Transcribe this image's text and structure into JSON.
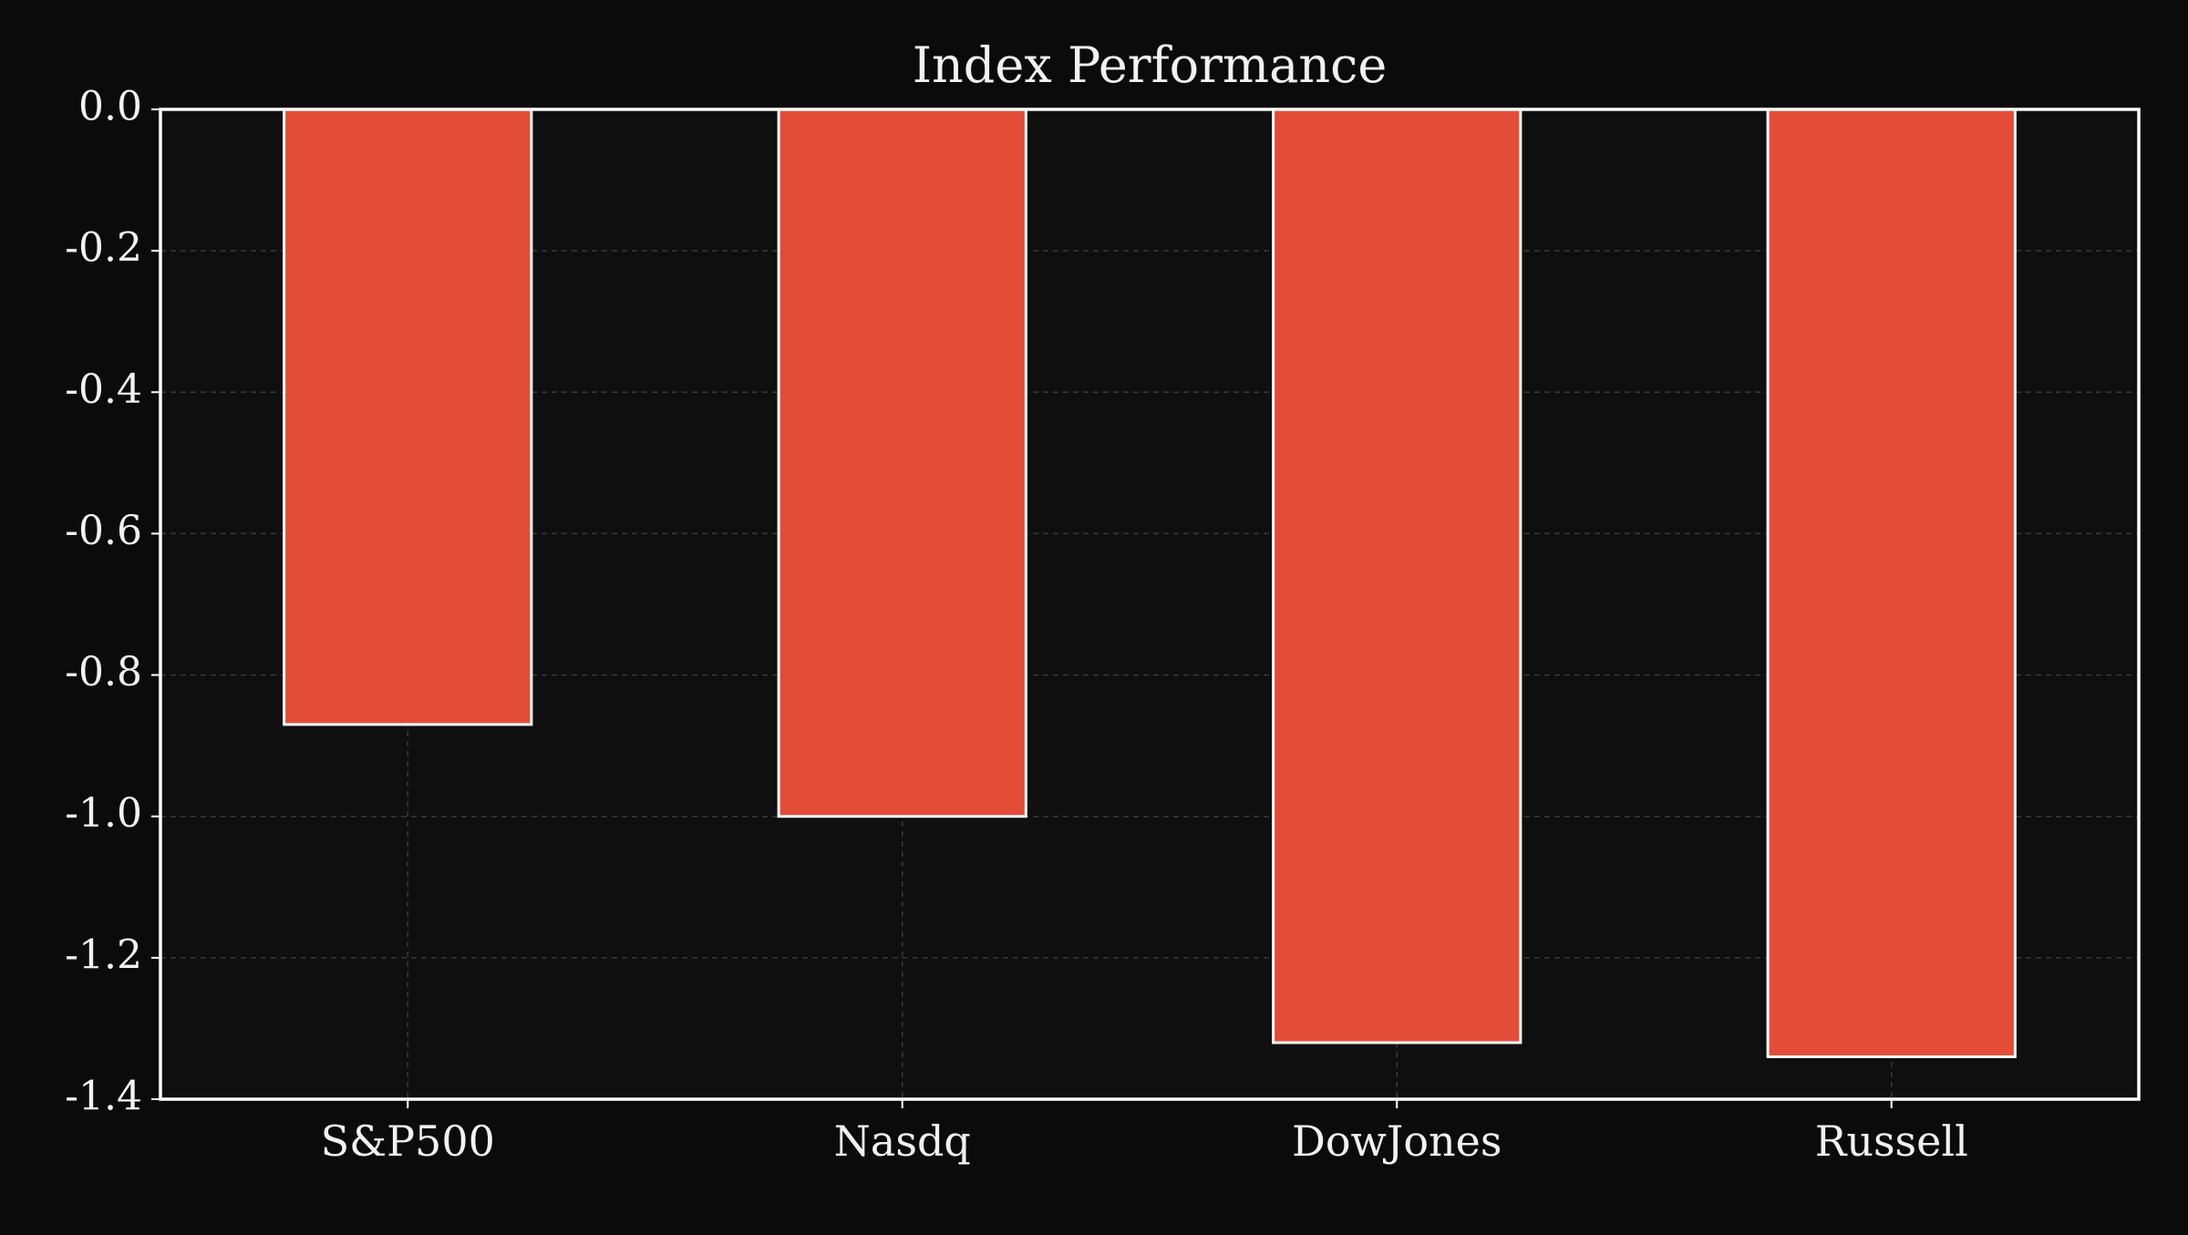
{
  "chart_data": {
    "type": "bar",
    "title": "Index Performance",
    "xlabel": "",
    "ylabel": "",
    "categories": [
      "S&P500",
      "Nasdq",
      "DowJones",
      "Russell"
    ],
    "values": [
      -0.87,
      -1.0,
      -1.32,
      -1.34
    ],
    "ylim": [
      -1.4,
      0.0
    ],
    "yticks": [
      "0.0",
      "-0.2",
      "-0.4",
      "-0.6",
      "-0.8",
      "-1.0",
      "-1.2",
      "-1.4"
    ],
    "grid": true,
    "legend": "none",
    "colors": {
      "background": "#0b0b0b",
      "plot_background": "#0f0f0f",
      "bar_fill": "#e34c36",
      "bar_edge": "#ffffff",
      "axis": "#ffffff",
      "grid": "#3a3a3a",
      "text": "#f2f2f2"
    }
  }
}
